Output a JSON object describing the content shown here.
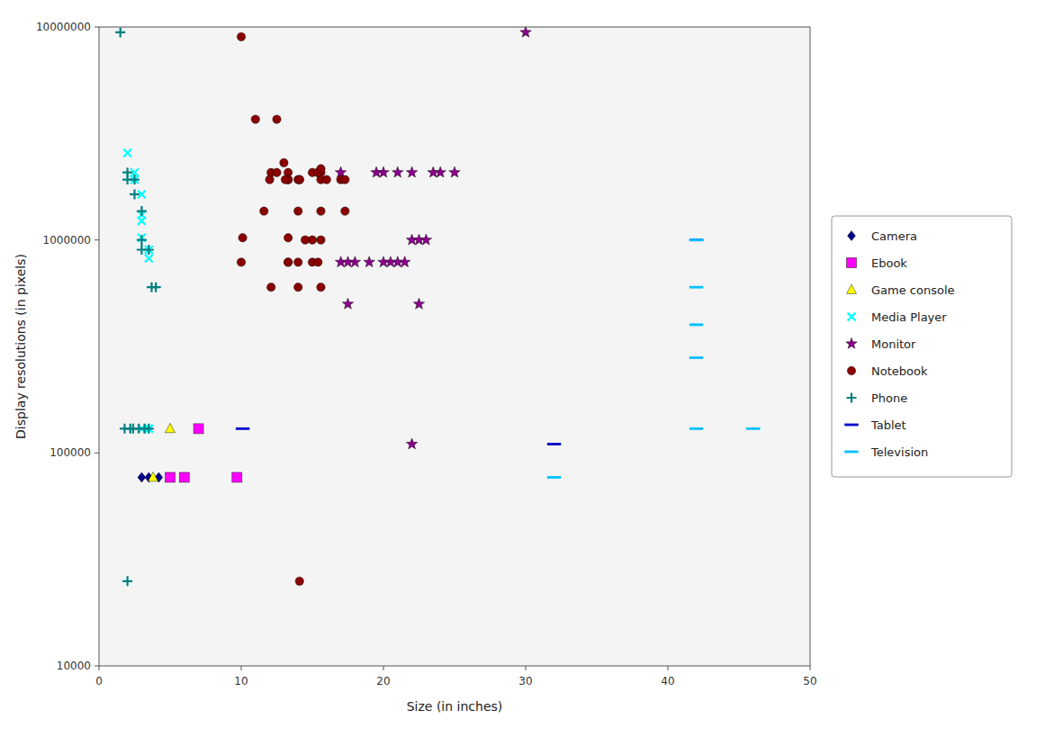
{
  "chart_data": {
    "type": "scatter",
    "x_label": "Size (in inches)",
    "y_label": "Display resolutions (in pixels)",
    "log": "y",
    "grid": false,
    "legend": "right",
    "xlim": [
      0,
      50
    ],
    "ylim": [
      10000,
      10000000
    ],
    "xticks": [
      0,
      10,
      20,
      30,
      40,
      50
    ],
    "yticks": [
      10000,
      100000,
      1000000,
      10000000
    ],
    "series": [
      {
        "name": "Camera",
        "color": "#00008B",
        "marker": "diamond",
        "x": [
          3.0,
          3.5,
          4.2
        ],
        "values": [
          76800,
          76800,
          76800
        ]
      },
      {
        "name": "Ebook",
        "color": "#FF00FF",
        "marker": "square",
        "x": [
          5.0,
          6.0,
          9.7,
          7.0
        ],
        "values": [
          76800,
          76800,
          76800,
          130000
        ]
      },
      {
        "name": "Game console",
        "color": "#FFFF00",
        "marker": "triangle",
        "x": [
          3.8,
          5.0
        ],
        "values": [
          76800,
          130000
        ]
      },
      {
        "name": "Media Player",
        "color": "#00FFFF",
        "marker": "x",
        "x": [
          2.0,
          2.5,
          2.5,
          3.0,
          3.0,
          3.0,
          3.0,
          3.5,
          3.5,
          3.5,
          3.5,
          3.0
        ],
        "values": [
          2560000,
          2073600,
          1920000,
          1638400,
          1310720,
          1228800,
          1024000,
          900000,
          820000,
          130000,
          130000,
          130000
        ]
      },
      {
        "name": "Monitor",
        "color": "#8B008B",
        "marker": "star",
        "x": [
          17.0,
          17.5,
          18.0,
          19.0,
          20.0,
          20.5,
          21.0,
          21.5,
          22.0,
          22.5,
          23.0,
          23.5,
          24.0,
          25.0,
          17.0,
          19.5,
          20.0,
          21.0,
          22.0,
          22.5,
          17.5,
          22.0,
          30.0
        ],
        "values": [
          786432,
          786432,
          786432,
          786432,
          786432,
          786432,
          786432,
          786432,
          1000000,
          1000000,
          1000000,
          2073600,
          2073600,
          2073600,
          2073600,
          2073600,
          2073600,
          2073600,
          2073600,
          500000,
          500000,
          110000,
          9437184
        ]
      },
      {
        "name": "Notebook",
        "color": "#8B0000",
        "marker": "circle",
        "x": [
          10.1,
          11.6,
          12.0,
          12.1,
          13.0,
          13.3,
          13.3,
          13.3,
          14.0,
          14.0,
          14.1,
          15.0,
          15.4,
          15.6,
          15.6,
          15.6,
          16.0,
          17.0,
          17.3,
          17.3,
          11.0,
          12.5,
          12.5,
          13.1,
          14.1,
          15.4,
          15.6,
          10.0,
          13.3,
          14.0,
          15.0,
          15.6,
          14.5,
          13.3,
          15.6,
          10.0,
          12.1,
          14.0,
          13.3,
          15.0,
          15.4,
          14.1
        ],
        "values": [
          1024000,
          1366000,
          1920000,
          2073600,
          2304000,
          2073600,
          1920000,
          1920000,
          1920000,
          1366000,
          1920000,
          2073600,
          2073600,
          2073600,
          1920000,
          1366000,
          1920000,
          1920000,
          1920000,
          1366000,
          3686400,
          3686400,
          2073600,
          1920000,
          1920000,
          2073600,
          2160000,
          786432,
          1024000,
          600000,
          1000000,
          1000000,
          1000000,
          786432,
          600000,
          9000000,
          600000,
          786432,
          786432,
          786432,
          786432,
          25000
        ]
      },
      {
        "name": "Phone",
        "color": "#008080",
        "marker": "plus",
        "x": [
          1.5,
          2.0,
          2.0,
          2.5,
          2.5,
          3.0,
          3.0,
          3.0,
          3.5,
          3.7,
          4.0,
          1.8,
          2.2,
          2.4,
          2.8,
          3.2,
          3.5,
          2.0
        ],
        "values": [
          9437184,
          2073600,
          1920000,
          1920000,
          1638400,
          1366000,
          1000000,
          900000,
          900000,
          600000,
          600000,
          130000,
          130000,
          130000,
          130000,
          130000,
          130000,
          25000
        ]
      },
      {
        "name": "Tablet",
        "color": "#0000CD",
        "marker": "hline",
        "x": [
          10.1,
          32.0,
          42.0
        ],
        "values": [
          130000,
          110000,
          1000000
        ]
      },
      {
        "name": "Television",
        "color": "#00BFFF",
        "marker": "hline",
        "x": [
          42.0,
          42.0,
          42.0,
          46.0,
          32.0,
          42.0,
          42.0
        ],
        "values": [
          1000000,
          600000,
          400000,
          130000,
          76800,
          130000,
          280000
        ]
      }
    ]
  }
}
